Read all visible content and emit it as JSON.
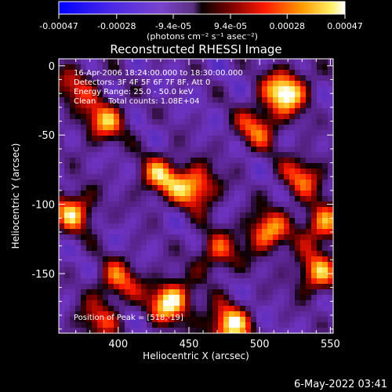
{
  "chart_data": {
    "type": "heatmap",
    "title": "Reconstructed RHESSI Image",
    "xlabel": "Heliocentric X (arcsec)",
    "ylabel": "Heliocentric Y (arcsec)",
    "x_range": [
      358,
      552
    ],
    "y_range": [
      -193,
      5
    ],
    "x_ticks": [
      400,
      450,
      500,
      550
    ],
    "y_ticks": [
      0,
      -50,
      -100,
      -150
    ],
    "annotations": [
      "16-Apr-2006 18:24:00.000 to 18:30:00.000",
      "Detectors: 3F 4F 5F 6F 7F 8F, Att 0",
      "Energy Range: 25.0 - 50.0 keV",
      "Clean     Total counts: 1.08E+04",
      "Position of Peak = [518,-19]"
    ],
    "colorbar": {
      "range": [
        -0.00047,
        0.00047
      ],
      "ticks": [
        "-0.00047",
        "-0.00028",
        "-9.4e-05",
        "9.4e-05",
        "0.00028",
        "0.00047"
      ],
      "unit_label": "(photons cm⁻² s⁻¹ asec⁻²)"
    },
    "peak": {
      "x": 518,
      "y": -19
    },
    "bright_sources": [
      {
        "x": 518,
        "y": -19,
        "level": 1.0
      },
      {
        "x": 437,
        "y": -170,
        "level": 0.95
      },
      {
        "x": 478,
        "y": -188,
        "level": 0.9
      },
      {
        "x": 455,
        "y": -88,
        "level": 0.8
      },
      {
        "x": 368,
        "y": -105,
        "level": 0.75
      },
      {
        "x": 430,
        "y": -80,
        "level": 0.7
      },
      {
        "x": 505,
        "y": -120,
        "level": 0.75
      },
      {
        "x": 545,
        "y": -115,
        "level": 0.7
      },
      {
        "x": 540,
        "y": -150,
        "level": 0.7
      },
      {
        "x": 390,
        "y": -40,
        "level": 0.7
      },
      {
        "x": 498,
        "y": -45,
        "level": 0.6
      },
      {
        "x": 400,
        "y": -155,
        "level": 0.6
      },
      {
        "x": 370,
        "y": -15,
        "level": 0.5
      },
      {
        "x": 530,
        "y": -80,
        "level": 0.6
      },
      {
        "x": 470,
        "y": -135,
        "level": 0.55
      },
      {
        "x": 385,
        "y": -185,
        "level": 0.5
      }
    ]
  },
  "footer": {
    "timestamp": "6-May-2022 03:41"
  }
}
